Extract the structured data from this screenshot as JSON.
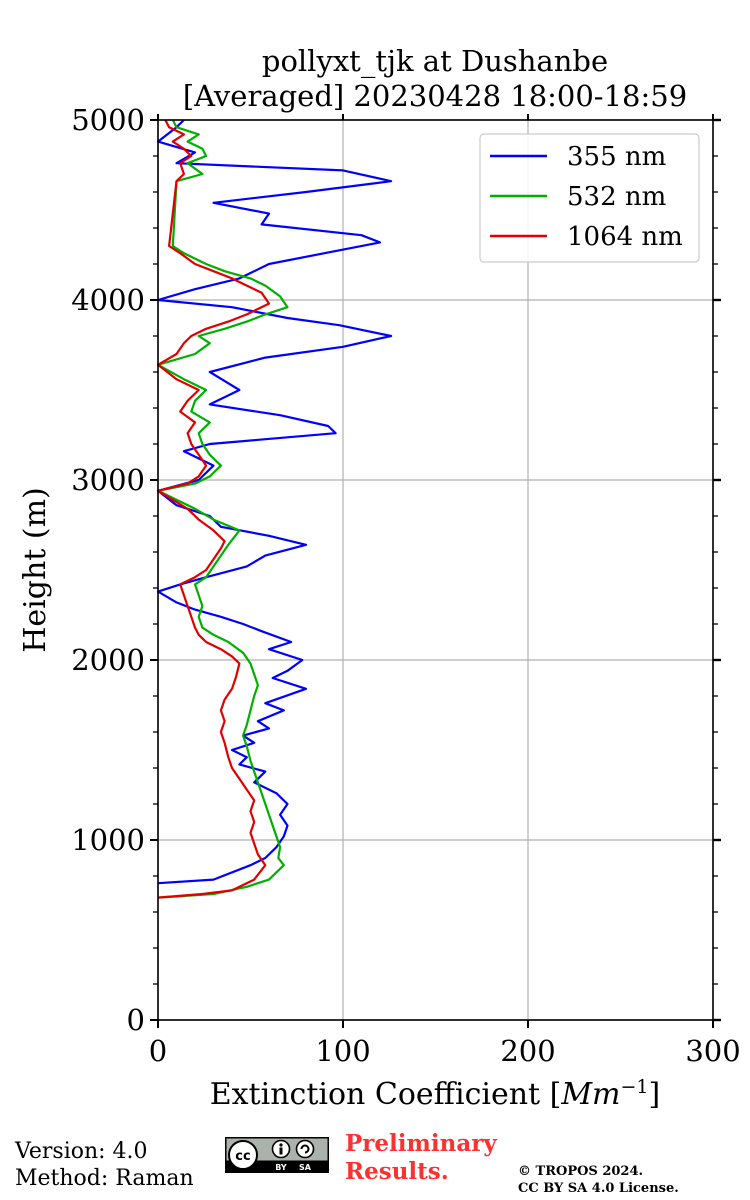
{
  "chart_data": {
    "type": "line",
    "title_line1": "pollyxt_tjk at Dushanbe",
    "title_line2": "[Averaged] 20230428 18:00-18:59",
    "xlabel": "Extinction Coefficient [Mm⁻¹]",
    "xlabel_main": "Extinction Coefficient [",
    "xlabel_unit": "Mm",
    "xlabel_exp": "−1",
    "xlabel_close": "]",
    "ylabel": "Height (m)",
    "xlim": [
      0,
      300
    ],
    "ylim": [
      0,
      5000
    ],
    "xticks": [
      0,
      100,
      200,
      300
    ],
    "xtick_labels": [
      "0",
      "100",
      "200",
      "300"
    ],
    "yticks": [
      0,
      1000,
      2000,
      3000,
      4000,
      5000
    ],
    "ytick_labels": [
      "0",
      "1000",
      "2000",
      "3000",
      "4000",
      "5000"
    ],
    "grid": true,
    "legend_position": "top-right",
    "series": [
      {
        "name": "355 nm",
        "color": "#0000ff",
        "points": [
          [
            0,
            760
          ],
          [
            30,
            780
          ],
          [
            50,
            860
          ],
          [
            58,
            900
          ],
          [
            64,
            960
          ],
          [
            68,
            1020
          ],
          [
            70,
            1080
          ],
          [
            66,
            1140
          ],
          [
            70,
            1200
          ],
          [
            64,
            1260
          ],
          [
            52,
            1320
          ],
          [
            58,
            1380
          ],
          [
            44,
            1420
          ],
          [
            48,
            1460
          ],
          [
            40,
            1500
          ],
          [
            52,
            1540
          ],
          [
            46,
            1580
          ],
          [
            60,
            1620
          ],
          [
            54,
            1660
          ],
          [
            68,
            1720
          ],
          [
            58,
            1760
          ],
          [
            80,
            1840
          ],
          [
            62,
            1900
          ],
          [
            70,
            1940
          ],
          [
            78,
            2000
          ],
          [
            60,
            2060
          ],
          [
            72,
            2100
          ],
          [
            56,
            2160
          ],
          [
            46,
            2200
          ],
          [
            34,
            2240
          ],
          [
            20,
            2280
          ],
          [
            10,
            2320
          ],
          [
            0,
            2380
          ],
          [
            12,
            2420
          ],
          [
            26,
            2460
          ],
          [
            48,
            2520
          ],
          [
            58,
            2580
          ],
          [
            80,
            2640
          ],
          [
            60,
            2690
          ],
          [
            34,
            2740
          ],
          [
            28,
            2800
          ],
          [
            10,
            2860
          ],
          [
            0,
            2940
          ],
          [
            22,
            3000
          ],
          [
            30,
            3080
          ],
          [
            14,
            3160
          ],
          [
            28,
            3200
          ],
          [
            96,
            3260
          ],
          [
            92,
            3300
          ],
          [
            66,
            3360
          ],
          [
            28,
            3420
          ],
          [
            44,
            3500
          ],
          [
            28,
            3600
          ],
          [
            58,
            3680
          ],
          [
            100,
            3740
          ],
          [
            126,
            3800
          ],
          [
            98,
            3860
          ],
          [
            70,
            3900
          ],
          [
            40,
            3960
          ],
          [
            0,
            4000
          ],
          [
            20,
            4060
          ],
          [
            44,
            4120
          ],
          [
            60,
            4200
          ],
          [
            90,
            4260
          ],
          [
            120,
            4320
          ],
          [
            110,
            4360
          ],
          [
            56,
            4420
          ],
          [
            60,
            4480
          ],
          [
            30,
            4540
          ],
          [
            80,
            4600
          ],
          [
            126,
            4660
          ],
          [
            100,
            4720
          ],
          [
            10,
            4760
          ],
          [
            20,
            4820
          ],
          [
            0,
            4880
          ],
          [
            10,
            4960
          ],
          [
            14,
            5000
          ]
        ]
      },
      {
        "name": "532 nm",
        "color": "#00b000",
        "points": [
          [
            0,
            680
          ],
          [
            30,
            700
          ],
          [
            48,
            740
          ],
          [
            60,
            780
          ],
          [
            68,
            860
          ],
          [
            65,
            900
          ],
          [
            66,
            960
          ],
          [
            64,
            1020
          ],
          [
            62,
            1080
          ],
          [
            60,
            1140
          ],
          [
            58,
            1200
          ],
          [
            56,
            1260
          ],
          [
            54,
            1320
          ],
          [
            52,
            1380
          ],
          [
            50,
            1440
          ],
          [
            48,
            1520
          ],
          [
            46,
            1580
          ],
          [
            48,
            1640
          ],
          [
            50,
            1720
          ],
          [
            52,
            1800
          ],
          [
            54,
            1860
          ],
          [
            52,
            1920
          ],
          [
            50,
            1980
          ],
          [
            46,
            2040
          ],
          [
            38,
            2100
          ],
          [
            30,
            2140
          ],
          [
            24,
            2180
          ],
          [
            22,
            2240
          ],
          [
            24,
            2300
          ],
          [
            22,
            2360
          ],
          [
            20,
            2420
          ],
          [
            26,
            2460
          ],
          [
            30,
            2520
          ],
          [
            34,
            2580
          ],
          [
            38,
            2640
          ],
          [
            44,
            2720
          ],
          [
            30,
            2780
          ],
          [
            20,
            2840
          ],
          [
            0,
            2940
          ],
          [
            20,
            2980
          ],
          [
            28,
            3020
          ],
          [
            34,
            3080
          ],
          [
            28,
            3140
          ],
          [
            24,
            3200
          ],
          [
            22,
            3260
          ],
          [
            28,
            3320
          ],
          [
            18,
            3380
          ],
          [
            20,
            3440
          ],
          [
            26,
            3500
          ],
          [
            14,
            3560
          ],
          [
            0,
            3640
          ],
          [
            20,
            3700
          ],
          [
            28,
            3760
          ],
          [
            22,
            3800
          ],
          [
            36,
            3840
          ],
          [
            48,
            3880
          ],
          [
            58,
            3920
          ],
          [
            70,
            3960
          ],
          [
            66,
            4020
          ],
          [
            58,
            4080
          ],
          [
            50,
            4120
          ],
          [
            36,
            4160
          ],
          [
            26,
            4200
          ],
          [
            14,
            4260
          ],
          [
            8,
            4300
          ],
          [
            10,
            4660
          ],
          [
            24,
            4700
          ],
          [
            16,
            4760
          ],
          [
            26,
            4800
          ],
          [
            24,
            4840
          ],
          [
            16,
            4880
          ],
          [
            22,
            4920
          ],
          [
            10,
            4960
          ],
          [
            8,
            5000
          ]
        ]
      },
      {
        "name": "1064 nm",
        "color": "#e00000",
        "points": [
          [
            0,
            680
          ],
          [
            24,
            700
          ],
          [
            40,
            720
          ],
          [
            52,
            780
          ],
          [
            58,
            860
          ],
          [
            54,
            920
          ],
          [
            52,
            980
          ],
          [
            50,
            1040
          ],
          [
            52,
            1100
          ],
          [
            50,
            1160
          ],
          [
            52,
            1220
          ],
          [
            48,
            1280
          ],
          [
            44,
            1340
          ],
          [
            40,
            1400
          ],
          [
            38,
            1460
          ],
          [
            36,
            1540
          ],
          [
            34,
            1600
          ],
          [
            36,
            1660
          ],
          [
            34,
            1720
          ],
          [
            36,
            1780
          ],
          [
            40,
            1840
          ],
          [
            42,
            1900
          ],
          [
            44,
            1980
          ],
          [
            40,
            2020
          ],
          [
            34,
            2060
          ],
          [
            26,
            2100
          ],
          [
            22,
            2140
          ],
          [
            20,
            2180
          ],
          [
            18,
            2240
          ],
          [
            16,
            2300
          ],
          [
            14,
            2360
          ],
          [
            12,
            2420
          ],
          [
            20,
            2460
          ],
          [
            26,
            2500
          ],
          [
            30,
            2560
          ],
          [
            34,
            2620
          ],
          [
            36,
            2660
          ],
          [
            30,
            2720
          ],
          [
            22,
            2780
          ],
          [
            16,
            2840
          ],
          [
            0,
            2940
          ],
          [
            16,
            2980
          ],
          [
            22,
            3020
          ],
          [
            26,
            3080
          ],
          [
            22,
            3140
          ],
          [
            18,
            3200
          ],
          [
            16,
            3260
          ],
          [
            20,
            3320
          ],
          [
            12,
            3380
          ],
          [
            16,
            3440
          ],
          [
            22,
            3500
          ],
          [
            10,
            3560
          ],
          [
            0,
            3640
          ],
          [
            10,
            3700
          ],
          [
            14,
            3760
          ],
          [
            18,
            3800
          ],
          [
            26,
            3840
          ],
          [
            38,
            3880
          ],
          [
            48,
            3920
          ],
          [
            60,
            3980
          ],
          [
            56,
            4040
          ],
          [
            48,
            4080
          ],
          [
            40,
            4120
          ],
          [
            30,
            4160
          ],
          [
            20,
            4200
          ],
          [
            12,
            4260
          ],
          [
            6,
            4300
          ],
          [
            10,
            4660
          ],
          [
            14,
            4700
          ],
          [
            12,
            4760
          ],
          [
            18,
            4800
          ],
          [
            14,
            4840
          ],
          [
            8,
            4880
          ],
          [
            14,
            4920
          ],
          [
            6,
            4960
          ],
          [
            4,
            5000
          ]
        ]
      }
    ]
  },
  "footer": {
    "version": "Version: 4.0",
    "method": "Method: Raman",
    "preliminary_line1": "Preliminary",
    "preliminary_line2": "Results.",
    "copyright_line1": "© TROPOS 2024.",
    "copyright_line2": "CC BY SA 4.0 License.",
    "license_badge": {
      "cc": "cc",
      "by": "BY",
      "sa": "SA"
    }
  }
}
